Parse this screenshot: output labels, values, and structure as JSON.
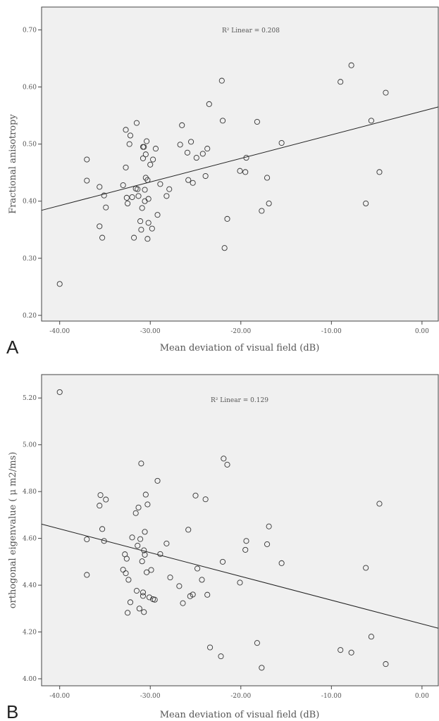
{
  "chart_data": [
    {
      "panel": "A",
      "type": "scatter",
      "xlabel": "Mean deviation of visual field (dB)",
      "ylabel": "Fractional anisotropy",
      "xlim": [
        -42.0,
        1.8
      ],
      "ylim": [
        0.19,
        0.74
      ],
      "xticks": [
        -40,
        -30,
        -20,
        -10,
        0
      ],
      "xtick_labels": [
        "-40.00",
        "-30.00",
        "-20.00",
        "-10.00",
        "0.00"
      ],
      "yticks": [
        0.2,
        0.3,
        0.4,
        0.5,
        0.6,
        0.7
      ],
      "ytick_labels": [
        "0.20",
        "0.30",
        "0.40",
        "0.50",
        "0.60",
        "0.70"
      ],
      "annotation": {
        "label": "R² Linear = 0.208",
        "r2": 0.208
      },
      "fit_line": {
        "x": [
          -42.0,
          1.8
        ],
        "y": [
          0.384,
          0.565
        ]
      },
      "grid": false,
      "series": [
        {
          "x": [
            -40.0,
            -37.0,
            -37.0,
            -35.6,
            -35.6,
            -35.3,
            -35.1,
            -34.9,
            -33.0,
            -32.7,
            -32.7,
            -32.6,
            -32.5,
            -32.3,
            -32.2,
            -32.0,
            -31.8,
            -31.6,
            -31.5,
            -31.4,
            -31.3,
            -31.1,
            -31.0,
            -30.9,
            -30.8,
            -30.8,
            -30.7,
            -30.6,
            -30.6,
            -30.5,
            -30.5,
            -30.4,
            -30.3,
            -30.3,
            -30.2,
            -30.2,
            -30.0,
            -29.8,
            -29.7,
            -29.4,
            -29.2,
            -28.9,
            -28.2,
            -27.9,
            -26.7,
            -26.5,
            -25.9,
            -25.8,
            -25.5,
            -25.3,
            -24.9,
            -24.2,
            -23.9,
            -23.7,
            -23.5,
            -22.1,
            -22.0,
            -21.8,
            -21.5,
            -20.1,
            -19.5,
            -19.4,
            -18.2,
            -17.7,
            -17.1,
            -16.9,
            -15.5,
            -9.0,
            -7.8,
            -6.2,
            -5.6,
            -4.7,
            -4.0
          ],
          "y": [
            0.255,
            0.473,
            0.436,
            0.425,
            0.356,
            0.336,
            0.41,
            0.389,
            0.428,
            0.525,
            0.459,
            0.406,
            0.396,
            0.5,
            0.515,
            0.407,
            0.336,
            0.422,
            0.537,
            0.421,
            0.409,
            0.365,
            0.35,
            0.388,
            0.495,
            0.475,
            0.495,
            0.42,
            0.4,
            0.482,
            0.441,
            0.505,
            0.437,
            0.334,
            0.404,
            0.362,
            0.464,
            0.352,
            0.473,
            0.492,
            0.376,
            0.43,
            0.409,
            0.421,
            0.499,
            0.533,
            0.485,
            0.437,
            0.504,
            0.432,
            0.476,
            0.483,
            0.444,
            0.492,
            0.57,
            0.611,
            0.541,
            0.318,
            0.369,
            0.453,
            0.451,
            0.476,
            0.539,
            0.383,
            0.441,
            0.396,
            0.502,
            0.609,
            0.638,
            0.396,
            0.541,
            0.451,
            0.59
          ]
        }
      ]
    },
    {
      "panel": "B",
      "type": "scatter",
      "xlabel": "Mean deviation of visual field (dB)",
      "ylabel": "orthogonal eigenvalue ( μ m2/ms)",
      "xlim": [
        -42.0,
        1.8
      ],
      "ylim": [
        3.97,
        5.3
      ],
      "xticks": [
        -40,
        -30,
        -20,
        -10,
        0
      ],
      "xtick_labels": [
        "-40.00",
        "-30.00",
        "-20.00",
        "-10.00",
        "0.00"
      ],
      "yticks": [
        4.0,
        4.2,
        4.4,
        4.6,
        4.8,
        5.0,
        5.2
      ],
      "ytick_labels": [
        "4.00",
        "4.20",
        "4.40",
        "4.60",
        "4.80",
        "5.00",
        "5.20"
      ],
      "annotation": {
        "label": "R² Linear = 0.129",
        "r2": 0.129
      },
      "fit_line": {
        "x": [
          -42.0,
          1.8
        ],
        "y": [
          4.661,
          4.216
        ]
      },
      "grid": false,
      "series": [
        {
          "x": [
            -40.0,
            -37.0,
            -37.0,
            -35.6,
            -35.5,
            -35.3,
            -35.1,
            -34.9,
            -33.0,
            -32.8,
            -32.7,
            -32.6,
            -32.5,
            -32.4,
            -32.2,
            -32.0,
            -31.6,
            -31.5,
            -31.4,
            -31.3,
            -31.2,
            -31.1,
            -31.0,
            -30.9,
            -30.8,
            -30.8,
            -30.7,
            -30.7,
            -30.6,
            -30.6,
            -30.5,
            -30.4,
            -30.3,
            -30.1,
            -29.9,
            -29.7,
            -29.5,
            -29.2,
            -28.9,
            -28.2,
            -27.8,
            -26.8,
            -26.4,
            -25.8,
            -25.6,
            -25.3,
            -25.0,
            -24.8,
            -24.3,
            -23.9,
            -23.7,
            -23.4,
            -22.2,
            -22.0,
            -21.9,
            -21.5,
            -20.1,
            -19.5,
            -19.4,
            -18.2,
            -17.7,
            -17.1,
            -16.9,
            -15.5,
            -9.0,
            -7.8,
            -6.2,
            -5.6,
            -4.7,
            -4.0
          ],
          "y": [
            5.225,
            4.596,
            4.444,
            4.74,
            4.785,
            4.64,
            4.589,
            4.766,
            4.466,
            4.532,
            4.451,
            4.513,
            4.282,
            4.423,
            4.327,
            4.604,
            4.708,
            4.376,
            4.569,
            4.732,
            4.3,
            4.597,
            4.92,
            4.502,
            4.369,
            4.354,
            4.549,
            4.285,
            4.628,
            4.53,
            4.787,
            4.455,
            4.745,
            4.348,
            4.465,
            4.34,
            4.338,
            4.846,
            4.533,
            4.578,
            4.433,
            4.396,
            4.323,
            4.637,
            4.353,
            4.36,
            4.783,
            4.471,
            4.423,
            4.767,
            4.359,
            4.134,
            4.096,
            4.5,
            4.941,
            4.915,
            4.411,
            4.551,
            4.589,
            4.153,
            4.047,
            4.575,
            4.651,
            4.494,
            4.123,
            4.112,
            4.474,
            4.18,
            4.748,
            4.063
          ]
        }
      ]
    }
  ],
  "panels": {
    "A": {
      "letter": "A"
    },
    "B": {
      "letter": "B"
    }
  }
}
